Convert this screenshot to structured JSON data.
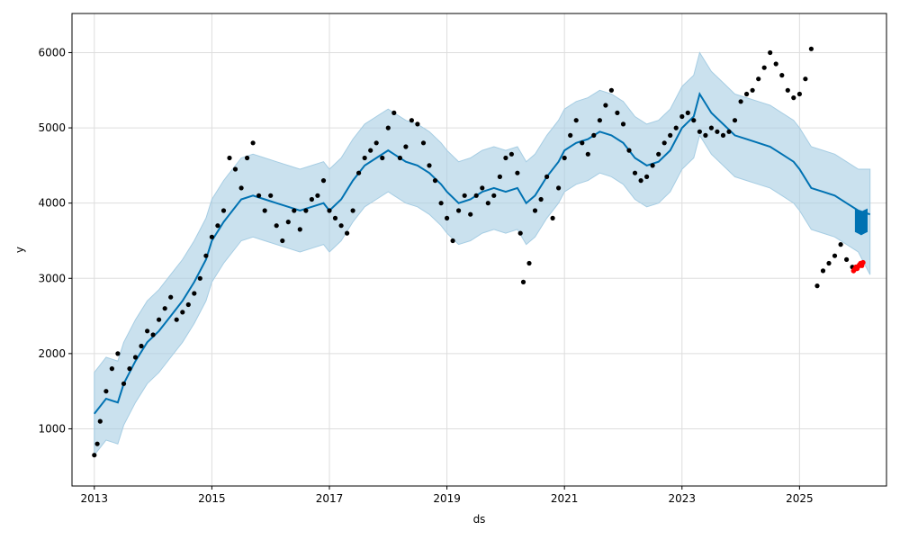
{
  "chart_data": {
    "type": "line",
    "title": "",
    "xlabel": "ds",
    "ylabel": "y",
    "xlim": [
      2012.62,
      2026.48
    ],
    "ylim": [
      240,
      6520
    ],
    "grid": true,
    "x_ticks": [
      2013,
      2015,
      2017,
      2019,
      2021,
      2023,
      2025
    ],
    "x_tick_labels": [
      "2013",
      "2015",
      "2017",
      "2019",
      "2021",
      "2023",
      "2025"
    ],
    "y_ticks": [
      1000,
      2000,
      3000,
      4000,
      5000,
      6000
    ],
    "y_tick_labels": [
      "1000",
      "2000",
      "3000",
      "4000",
      "5000",
      "6000"
    ],
    "colors": {
      "forecast": "#0072b2",
      "interval": "#a6cde3",
      "actual": "#000000",
      "highlight": "#ff0000",
      "grid": "#dddddd"
    },
    "series": [
      {
        "role": "forecast",
        "x": [
          2013.0,
          2013.2,
          2013.4,
          2013.5,
          2013.7,
          2013.9,
          2014.1,
          2014.3,
          2014.5,
          2014.7,
          2014.9,
          2015.0,
          2015.2,
          2015.35,
          2015.5,
          2015.7,
          2015.9,
          2016.1,
          2016.3,
          2016.5,
          2016.7,
          2016.9,
          2017.0,
          2017.2,
          2017.4,
          2017.6,
          2017.8,
          2018.0,
          2018.1,
          2018.3,
          2018.5,
          2018.7,
          2018.9,
          2019.0,
          2019.2,
          2019.4,
          2019.6,
          2019.8,
          2020.0,
          2020.2,
          2020.35,
          2020.5,
          2020.7,
          2020.9,
          2021.0,
          2021.2,
          2021.4,
          2021.6,
          2021.8,
          2022.0,
          2022.2,
          2022.4,
          2022.6,
          2022.8,
          2023.0,
          2023.2,
          2023.3,
          2023.5,
          2023.7,
          2023.9,
          2024.1,
          2024.3,
          2024.5,
          2024.7,
          2024.9,
          2025.0,
          2025.2,
          2025.4,
          2025.6,
          2025.8,
          2026.0,
          2026.2
        ],
        "y": [
          1200,
          1400,
          1350,
          1600,
          1900,
          2150,
          2300,
          2500,
          2700,
          2950,
          3250,
          3500,
          3750,
          3900,
          4050,
          4100,
          4050,
          4000,
          3950,
          3900,
          3950,
          4000,
          3900,
          4050,
          4300,
          4500,
          4600,
          4700,
          4650,
          4550,
          4500,
          4400,
          4250,
          4150,
          4000,
          4050,
          4150,
          4200,
          4150,
          4200,
          4000,
          4100,
          4350,
          4550,
          4700,
          4800,
          4850,
          4950,
          4900,
          4800,
          4600,
          4500,
          4550,
          4700,
          5000,
          5150,
          5450,
          5200,
          5050,
          4900,
          4850,
          4800,
          4750,
          4650,
          4550,
          4450,
          4200,
          4150,
          4100,
          4000,
          3900,
          3850
        ]
      },
      {
        "role": "interval_upper",
        "x": [
          2013.0,
          2013.2,
          2013.4,
          2013.5,
          2013.7,
          2013.9,
          2014.1,
          2014.3,
          2014.5,
          2014.7,
          2014.9,
          2015.0,
          2015.2,
          2015.35,
          2015.5,
          2015.7,
          2015.9,
          2016.1,
          2016.3,
          2016.5,
          2016.7,
          2016.9,
          2017.0,
          2017.2,
          2017.4,
          2017.6,
          2017.8,
          2018.0,
          2018.1,
          2018.3,
          2018.5,
          2018.7,
          2018.9,
          2019.0,
          2019.2,
          2019.4,
          2019.6,
          2019.8,
          2020.0,
          2020.2,
          2020.35,
          2020.5,
          2020.7,
          2020.9,
          2021.0,
          2021.2,
          2021.4,
          2021.6,
          2021.8,
          2022.0,
          2022.2,
          2022.4,
          2022.6,
          2022.8,
          2023.0,
          2023.2,
          2023.3,
          2023.5,
          2023.7,
          2023.9,
          2024.1,
          2024.3,
          2024.5,
          2024.7,
          2024.9,
          2025.0,
          2025.2,
          2025.4,
          2025.6,
          2025.8,
          2026.0,
          2026.2
        ],
        "y": [
          1750,
          1950,
          1900,
          2150,
          2450,
          2700,
          2850,
          3050,
          3250,
          3500,
          3800,
          4050,
          4300,
          4450,
          4600,
          4650,
          4600,
          4550,
          4500,
          4450,
          4500,
          4550,
          4450,
          4600,
          4850,
          5050,
          5150,
          5250,
          5200,
          5100,
          5050,
          4950,
          4800,
          4700,
          4550,
          4600,
          4700,
          4750,
          4700,
          4750,
          4550,
          4650,
          4900,
          5100,
          5250,
          5350,
          5400,
          5500,
          5450,
          5350,
          5150,
          5050,
          5100,
          5250,
          5550,
          5700,
          6000,
          5750,
          5600,
          5450,
          5400,
          5350,
          5300,
          5200,
          5100,
          5000,
          4750,
          4700,
          4650,
          4550,
          4450,
          4450
        ]
      },
      {
        "role": "interval_lower",
        "x": [
          2013.0,
          2013.2,
          2013.4,
          2013.5,
          2013.7,
          2013.9,
          2014.1,
          2014.3,
          2014.5,
          2014.7,
          2014.9,
          2015.0,
          2015.2,
          2015.35,
          2015.5,
          2015.7,
          2015.9,
          2016.1,
          2016.3,
          2016.5,
          2016.7,
          2016.9,
          2017.0,
          2017.2,
          2017.4,
          2017.6,
          2017.8,
          2018.0,
          2018.1,
          2018.3,
          2018.5,
          2018.7,
          2018.9,
          2019.0,
          2019.2,
          2019.4,
          2019.6,
          2019.8,
          2020.0,
          2020.2,
          2020.35,
          2020.5,
          2020.7,
          2020.9,
          2021.0,
          2021.2,
          2021.4,
          2021.6,
          2021.8,
          2022.0,
          2022.2,
          2022.4,
          2022.6,
          2022.8,
          2023.0,
          2023.2,
          2023.3,
          2023.5,
          2023.7,
          2023.9,
          2024.1,
          2024.3,
          2024.5,
          2024.7,
          2024.9,
          2025.0,
          2025.2,
          2025.4,
          2025.6,
          2025.8,
          2026.0,
          2026.2
        ],
        "y": [
          650,
          850,
          800,
          1050,
          1350,
          1600,
          1750,
          1950,
          2150,
          2400,
          2700,
          2950,
          3200,
          3350,
          3500,
          3550,
          3500,
          3450,
          3400,
          3350,
          3400,
          3450,
          3350,
          3500,
          3750,
          3950,
          4050,
          4150,
          4100,
          4000,
          3950,
          3850,
          3700,
          3600,
          3450,
          3500,
          3600,
          3650,
          3600,
          3650,
          3450,
          3550,
          3800,
          4000,
          4150,
          4250,
          4300,
          4400,
          4350,
          4250,
          4050,
          3950,
          4000,
          4150,
          4450,
          4600,
          4900,
          4650,
          4500,
          4350,
          4300,
          4250,
          4200,
          4100,
          4000,
          3900,
          3650,
          3600,
          3550,
          3450,
          3350,
          3050
        ]
      },
      {
        "role": "actual",
        "x": [
          2013.0,
          2013.05,
          2013.1,
          2013.2,
          2013.3,
          2013.4,
          2013.5,
          2013.6,
          2013.7,
          2013.8,
          2013.9,
          2014.0,
          2014.1,
          2014.2,
          2014.3,
          2014.4,
          2014.5,
          2014.6,
          2014.7,
          2014.8,
          2014.9,
          2015.0,
          2015.1,
          2015.2,
          2015.3,
          2015.4,
          2015.5,
          2015.6,
          2015.7,
          2015.8,
          2015.9,
          2016.0,
          2016.1,
          2016.2,
          2016.3,
          2016.4,
          2016.5,
          2016.6,
          2016.7,
          2016.8,
          2016.9,
          2017.0,
          2017.1,
          2017.2,
          2017.3,
          2017.4,
          2017.5,
          2017.6,
          2017.7,
          2017.8,
          2017.9,
          2018.0,
          2018.1,
          2018.2,
          2018.3,
          2018.4,
          2018.5,
          2018.6,
          2018.7,
          2018.8,
          2018.9,
          2019.0,
          2019.1,
          2019.2,
          2019.3,
          2019.4,
          2019.5,
          2019.6,
          2019.7,
          2019.8,
          2019.9,
          2020.0,
          2020.1,
          2020.2,
          2020.25,
          2020.3,
          2020.4,
          2020.5,
          2020.6,
          2020.7,
          2020.8,
          2020.9,
          2021.0,
          2021.1,
          2021.2,
          2021.3,
          2021.4,
          2021.5,
          2021.6,
          2021.7,
          2021.8,
          2021.9,
          2022.0,
          2022.1,
          2022.2,
          2022.3,
          2022.4,
          2022.5,
          2022.6,
          2022.7,
          2022.8,
          2022.9,
          2023.0,
          2023.1,
          2023.2,
          2023.3,
          2023.4,
          2023.5,
          2023.6,
          2023.7,
          2023.8,
          2023.9,
          2024.0,
          2024.1,
          2024.2,
          2024.3,
          2024.4,
          2024.5,
          2024.6,
          2024.7,
          2024.8,
          2024.9,
          2025.0,
          2025.1,
          2025.2,
          2025.3,
          2025.4,
          2025.5,
          2025.6,
          2025.7,
          2025.8,
          2025.9
        ],
        "y": [
          650,
          800,
          1100,
          1500,
          1800,
          2000,
          1600,
          1800,
          1950,
          2100,
          2300,
          2250,
          2450,
          2600,
          2750,
          2450,
          2550,
          2650,
          2800,
          3000,
          3300,
          3550,
          3700,
          3900,
          4600,
          4450,
          4200,
          4600,
          4800,
          4100,
          3900,
          4100,
          3700,
          3500,
          3750,
          3900,
          3650,
          3900,
          4050,
          4100,
          4300,
          3900,
          3800,
          3700,
          3600,
          3900,
          4400,
          4600,
          4700,
          4800,
          4600,
          5000,
          5200,
          4600,
          4750,
          5100,
          5050,
          4800,
          4500,
          4300,
          4000,
          3800,
          3500,
          3900,
          4100,
          3850,
          4100,
          4200,
          4000,
          4100,
          4350,
          4600,
          4650,
          4400,
          3600,
          2950,
          3200,
          3900,
          4050,
          4350,
          3800,
          4200,
          4600,
          4900,
          5100,
          4800,
          4650,
          4900,
          5100,
          5300,
          5500,
          5200,
          5050,
          4700,
          4400,
          4300,
          4350,
          4500,
          4650,
          4800,
          4900,
          5000,
          5150,
          5200,
          5100,
          4950,
          4900,
          5000,
          4950,
          4900,
          4950,
          5100,
          5350,
          5450,
          5500,
          5650,
          5800,
          6000,
          5850,
          5700,
          5500,
          5400,
          5450,
          5650,
          6050,
          2900,
          3100,
          3200,
          3300,
          3450,
          3250,
          3150
        ]
      },
      {
        "role": "highlight",
        "x": [
          2025.92,
          2025.94,
          2025.96,
          2025.98,
          2026.0,
          2026.02,
          2026.04,
          2026.06,
          2026.08
        ],
        "y": [
          3100,
          3120,
          3150,
          3130,
          3160,
          3180,
          3200,
          3170,
          3210
        ]
      },
      {
        "role": "forecast_band_end",
        "x": [
          2025.95,
          2026.0,
          2026.05,
          2026.1,
          2026.15
        ],
        "y_low": [
          3620,
          3600,
          3580,
          3600,
          3620
        ],
        "y_high": [
          3920,
          3900,
          3880,
          3900,
          3920
        ]
      }
    ]
  }
}
